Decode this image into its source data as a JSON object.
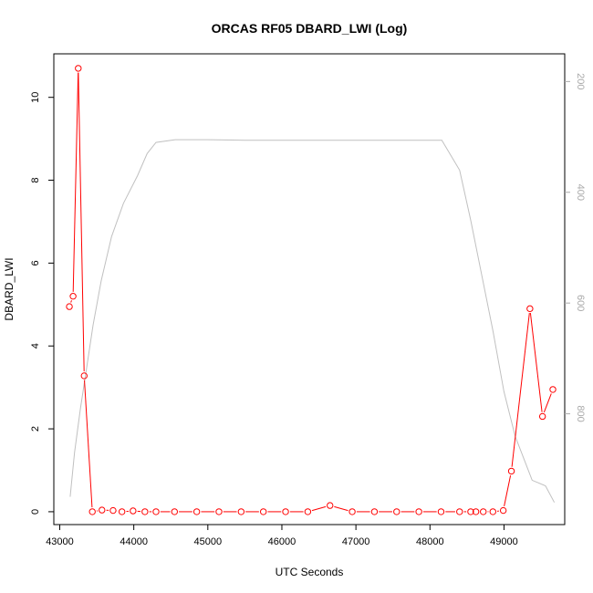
{
  "chart_data": {
    "type": "line",
    "title": "ORCAS RF05 DBARD_LWI (Log)",
    "xlabel": "UTC Seconds",
    "ylabel": "DBARD_LWI",
    "xlim": [
      42920,
      49820
    ],
    "ylim": [
      -0.31,
      11.05
    ],
    "y2lim": [
      1000,
      150
    ],
    "y2_reversed": true,
    "x_ticks": [
      "43000",
      "44000",
      "45000",
      "46000",
      "47000",
      "48000",
      "49000"
    ],
    "y_ticks": [
      "0",
      "2",
      "4",
      "6",
      "8",
      "10"
    ],
    "y2_ticks": [
      "200",
      "400",
      "600",
      "800"
    ],
    "grid": false,
    "series": [
      {
        "color": "#ff0000",
        "marker": "open-circle",
        "axis": "left",
        "x": [
          43130,
          43180,
          43250,
          43330,
          43440,
          43570,
          43720,
          43840,
          43990,
          44150,
          44300,
          44550,
          44850,
          45150,
          45450,
          45750,
          46050,
          46350,
          46650,
          46950,
          47250,
          47550,
          47850,
          48150,
          48400,
          48550,
          48620,
          48720,
          48850,
          48990,
          49100,
          49350,
          49520,
          49660
        ],
        "y": [
          4.95,
          5.2,
          10.7,
          3.28,
          0.0,
          0.04,
          0.03,
          0.0,
          0.02,
          0.0,
          0.0,
          0.0,
          0.0,
          0.0,
          0.0,
          0.0,
          0.0,
          0.0,
          0.15,
          0.0,
          0.0,
          0.0,
          0.0,
          0.0,
          0.0,
          0.0,
          0.0,
          0.0,
          0.0,
          0.03,
          0.98,
          4.9,
          2.3,
          2.95
        ]
      },
      {
        "color": "#c0c0c0",
        "marker": "none",
        "axis": "right",
        "x": [
          43140,
          43200,
          43280,
          43360,
          43450,
          43560,
          43700,
          43860,
          44050,
          44180,
          44300,
          44560,
          45000,
          45500,
          46000,
          47000,
          48000,
          48160,
          48400,
          48550,
          48700,
          48850,
          49000,
          49150,
          49380,
          49560,
          49680
        ],
        "y": [
          950,
          870,
          790,
          720,
          640,
          560,
          480,
          420,
          370,
          330,
          310,
          305,
          305,
          306,
          306,
          306,
          306,
          306,
          360,
          450,
          550,
          650,
          760,
          840,
          920,
          930,
          960
        ]
      }
    ]
  }
}
